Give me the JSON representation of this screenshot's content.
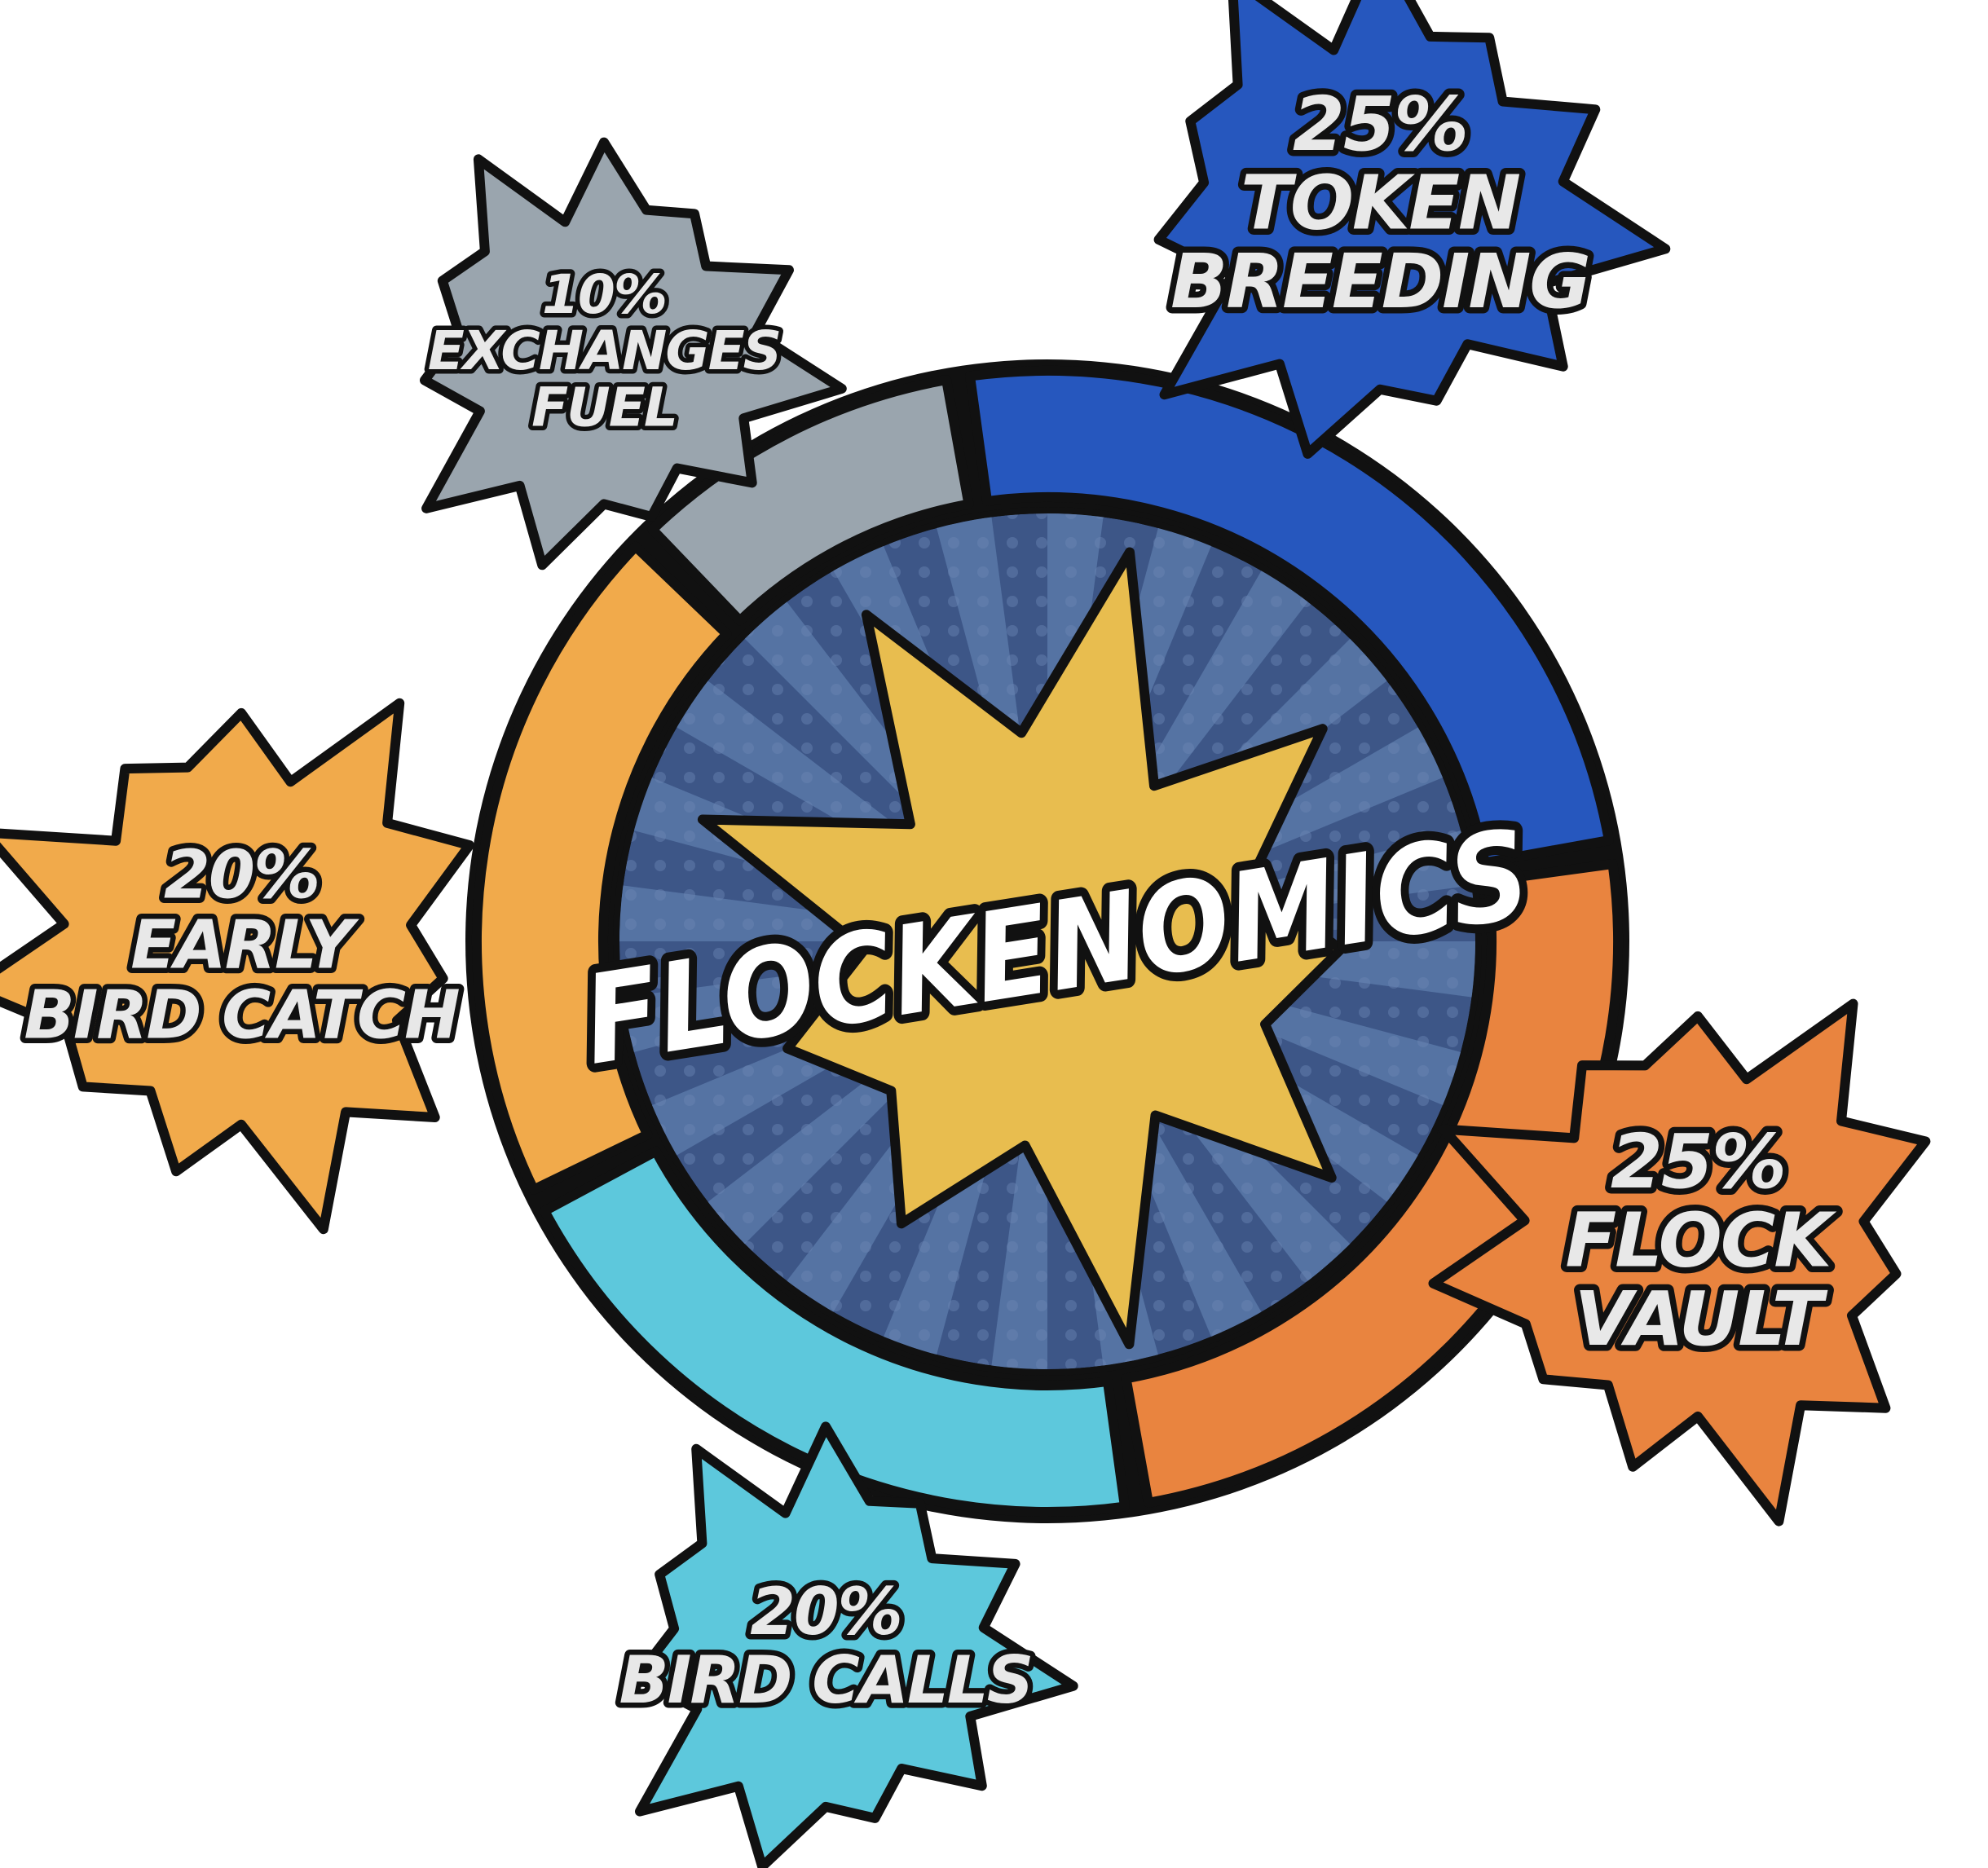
{
  "chart_data": {
    "type": "pie",
    "style": "donut",
    "title": "FLOCKENOMICS",
    "slices": [
      {
        "name": "TOKEN BREEDING",
        "value": 25,
        "percent_label": "25%",
        "label_lines": [
          "TOKEN",
          "BREEDING"
        ],
        "color": "#2657be",
        "burst_color": "#2657be"
      },
      {
        "name": "FLOCK VAULT",
        "value": 25,
        "percent_label": "25%",
        "label_lines": [
          "FLOCK",
          "VAULT"
        ],
        "color": "#e9843f",
        "burst_color": "#e9843f"
      },
      {
        "name": "BIRD CALLS",
        "value": 20,
        "percent_label": "20%",
        "label_lines": [
          "BIRD CALLS"
        ],
        "color": "#5dc8dc",
        "burst_color": "#5dc8dc"
      },
      {
        "name": "EARLY BIRD CATCH",
        "value": 20,
        "percent_label": "20%",
        "label_lines": [
          "EARLY",
          "BIRD CATCH"
        ],
        "color": "#f1aa4b",
        "burst_color": "#f1aa4b"
      },
      {
        "name": "EXCHANGES FUEL",
        "value": 10,
        "percent_label": "10%",
        "label_lines": [
          "EXCHANGES",
          "FUEL"
        ],
        "color": "#9aa5ae",
        "burst_color": "#9aa5ae"
      }
    ],
    "legend": "none"
  },
  "colors": {
    "outline": "#111111",
    "center_bg": "#3d5687",
    "center_rays": "#5573a3",
    "center_burst": "#e8bd4f",
    "label_fill": "#e8e8e8",
    "title_fill": "#ffffff"
  }
}
